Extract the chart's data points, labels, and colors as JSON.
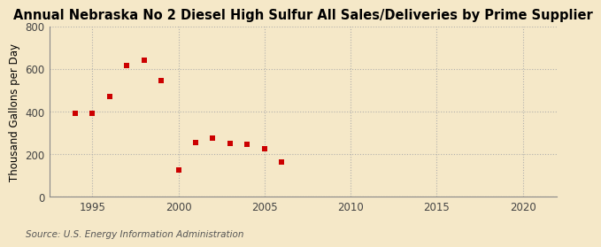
{
  "title": "Annual Nebraska No 2 Diesel High Sulfur All Sales/Deliveries by Prime Supplier",
  "ylabel": "Thousand Gallons per Day",
  "source": "Source: U.S. Energy Information Administration",
  "background_color": "#f5e8c8",
  "plot_background_color": "#f5e8c8",
  "marker_color": "#cc0000",
  "marker": "s",
  "marker_size": 4,
  "x_data": [
    1994,
    1995,
    1996,
    1997,
    1998,
    1999,
    2000,
    2001,
    2002,
    2003,
    2004,
    2005,
    2006
  ],
  "y_data": [
    390,
    392,
    470,
    615,
    640,
    545,
    125,
    255,
    275,
    250,
    245,
    225,
    165
  ],
  "xlim": [
    1992.5,
    2022
  ],
  "ylim": [
    0,
    800
  ],
  "xticks": [
    1995,
    2000,
    2005,
    2010,
    2015,
    2020
  ],
  "yticks": [
    0,
    200,
    400,
    600,
    800
  ],
  "grid_color": "#aaaaaa",
  "grid_linestyle": ":",
  "title_fontsize": 10.5,
  "label_fontsize": 8.5,
  "tick_fontsize": 8.5,
  "source_fontsize": 7.5
}
